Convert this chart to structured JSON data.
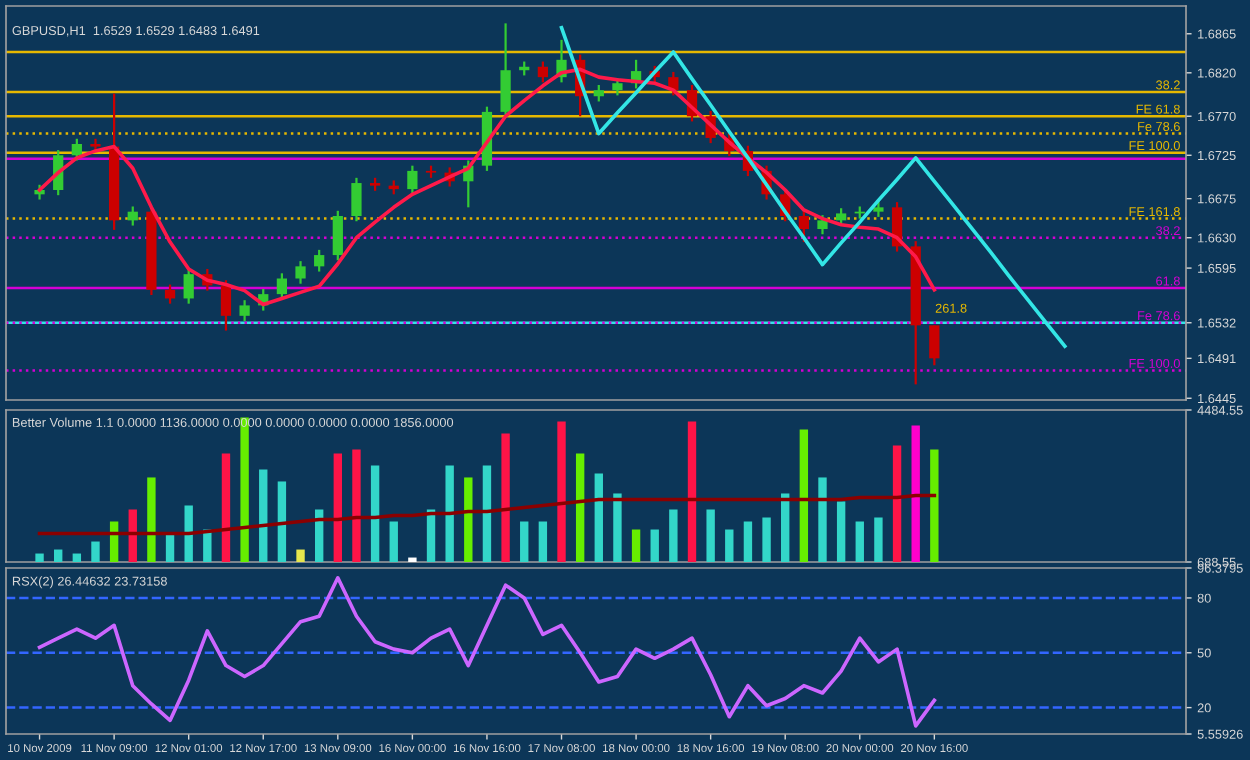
{
  "chart_data": [
    {
      "type": "candlestick",
      "annotations": [
        "GBPUSD,H1  1.6529 1.6529 1.6483 1.6491",
        "261.8",
        {
          "text": "38.2",
          "y": 1.6798
        },
        {
          "text": "38.2",
          "y": 1.663
        },
        {
          "text": "61.8",
          "y": 1.6572
        }
      ],
      "categories": [
        null,
        null,
        null,
        null,
        null,
        null,
        null,
        null,
        null,
        null,
        null,
        null,
        null,
        null,
        null,
        null,
        null,
        null,
        null,
        null,
        null,
        null,
        null,
        null,
        null,
        null,
        null,
        null,
        null,
        null,
        null,
        null,
        null,
        null,
        null,
        null,
        null,
        null,
        null,
        null,
        null,
        null,
        null,
        null,
        null,
        null,
        null,
        null,
        null,
        null,
        null,
        null,
        null,
        null,
        null,
        null,
        null,
        null,
        null,
        null,
        null,
        null
      ],
      "ohlc": [
        [
          1.668,
          1.6691,
          1.6674,
          1.6685
        ],
        [
          1.6685,
          1.6731,
          1.6679,
          1.6725
        ],
        [
          1.6725,
          1.6744,
          1.6719,
          1.6738
        ],
        [
          1.6738,
          1.6744,
          1.6729,
          1.6735
        ],
        [
          1.6735,
          1.6796,
          1.6639,
          1.665
        ],
        [
          1.665,
          1.6666,
          1.6644,
          1.666
        ],
        [
          1.666,
          1.6666,
          1.6564,
          1.657
        ],
        [
          1.657,
          1.6576,
          1.6554,
          1.656
        ],
        [
          1.656,
          1.6594,
          1.6554,
          1.6588
        ],
        [
          1.6588,
          1.6594,
          1.6569,
          1.6575
        ],
        [
          1.6575,
          1.6581,
          1.6523,
          1.654
        ],
        [
          1.654,
          1.6558,
          1.6534,
          1.6552
        ],
        [
          1.6552,
          1.6571,
          1.6546,
          1.6565
        ],
        [
          1.6565,
          1.6589,
          1.6559,
          1.6583
        ],
        [
          1.6583,
          1.6603,
          1.6577,
          1.6597
        ],
        [
          1.6597,
          1.6616,
          1.6591,
          1.661
        ],
        [
          1.661,
          1.6661,
          1.6604,
          1.6655
        ],
        [
          1.6655,
          1.6699,
          1.6649,
          1.6693
        ],
        [
          1.6693,
          1.6699,
          1.6684,
          1.669
        ],
        [
          1.669,
          1.6696,
          1.668,
          1.6686
        ],
        [
          1.6686,
          1.6713,
          1.668,
          1.6707
        ],
        [
          1.6707,
          1.6713,
          1.6699,
          1.6705
        ],
        [
          1.6705,
          1.6711,
          1.6689,
          1.6695
        ],
        [
          1.6695,
          1.6719,
          1.6665,
          1.6713
        ],
        [
          1.6713,
          1.6781,
          1.6707,
          1.6775
        ],
        [
          1.6775,
          1.6877,
          1.6769,
          1.6823
        ],
        [
          1.6823,
          1.6833,
          1.6817,
          1.6827
        ],
        [
          1.6827,
          1.6833,
          1.6809,
          1.6815
        ],
        [
          1.6815,
          1.6858,
          1.6809,
          1.6835
        ],
        [
          1.6835,
          1.6841,
          1.677,
          1.6793
        ],
        [
          1.6793,
          1.6806,
          1.6787,
          1.68
        ],
        [
          1.68,
          1.6814,
          1.6794,
          1.6808
        ],
        [
          1.6808,
          1.6835,
          1.6802,
          1.6822
        ],
        [
          1.6822,
          1.6828,
          1.6809,
          1.6815
        ],
        [
          1.6815,
          1.6821,
          1.6794,
          1.68
        ],
        [
          1.68,
          1.6806,
          1.6764,
          1.677
        ],
        [
          1.677,
          1.6776,
          1.6739,
          1.6745
        ],
        [
          1.6745,
          1.6751,
          1.6724,
          1.673
        ],
        [
          1.673,
          1.6736,
          1.6701,
          1.6707
        ],
        [
          1.6707,
          1.6713,
          1.6674,
          1.668
        ],
        [
          1.668,
          1.6686,
          1.6649,
          1.6655
        ],
        [
          1.6655,
          1.6661,
          1.6625,
          1.664
        ],
        [
          1.664,
          1.6656,
          1.6634,
          1.665
        ],
        [
          1.665,
          1.6664,
          1.6644,
          1.6658
        ],
        [
          1.6658,
          1.6666,
          1.6652,
          1.666
        ],
        [
          1.666,
          1.6673,
          1.6654,
          1.6665
        ],
        [
          1.6665,
          1.6671,
          1.6614,
          1.662
        ],
        [
          1.662,
          1.6626,
          1.6461,
          1.6529
        ],
        [
          1.6529,
          1.6529,
          1.6483,
          1.6491
        ],
        null,
        null,
        null,
        null,
        null,
        null,
        null,
        null,
        null,
        null,
        null,
        null,
        null
      ],
      "colors": [
        "#33cc33",
        "#33cc33",
        "#33cc33",
        "#cc0000",
        "#cc0000",
        "#33cc33",
        "#cc0000",
        "#cc0000",
        "#33cc33",
        "#cc0000",
        "#cc0000",
        "#33cc33",
        "#33cc33",
        "#33cc33",
        "#33cc33",
        "#33cc33",
        "#33cc33",
        "#33cc33",
        "#cc0000",
        "#cc0000",
        "#33cc33",
        "#cc0000",
        "#cc0000",
        "#33cc33",
        "#33cc33",
        "#33cc33",
        "#33cc33",
        "#cc0000",
        "#33cc33",
        "#cc0000",
        "#33cc33",
        "#33cc33",
        "#33cc33",
        "#cc0000",
        "#cc0000",
        "#cc0000",
        "#cc0000",
        "#cc0000",
        "#cc0000",
        "#cc0000",
        "#cc0000",
        "#cc0000",
        "#33cc33",
        "#33cc33",
        "#33cc33",
        "#33cc33",
        "#cc0000",
        "#cc0000",
        "#cc0000",
        null,
        null,
        null,
        null,
        null,
        null,
        null,
        null,
        null,
        null,
        null,
        null,
        null
      ],
      "series": [
        {
          "type": "line",
          "color": "#ff1a4a",
          "values": [
            1.6685,
            1.6705,
            1.6722,
            1.673,
            1.6735,
            1.671,
            1.6665,
            1.6625,
            1.6594,
            1.6581,
            1.6576,
            1.6569,
            1.6553,
            1.656,
            1.6567,
            1.6574,
            1.66,
            1.663,
            1.6648,
            1.6665,
            1.668,
            1.669,
            1.67,
            1.671,
            1.674,
            1.677,
            1.6788,
            1.6805,
            1.682,
            1.6824,
            1.6815,
            1.6812,
            1.681,
            1.6808,
            1.68,
            1.678,
            1.676,
            1.674,
            1.6722,
            1.6705,
            1.6685,
            1.6662,
            1.6652,
            1.6645,
            1.6642,
            1.664,
            1.663,
            1.6608,
            1.657,
            null,
            null,
            null,
            null,
            null,
            null,
            null,
            null,
            null,
            null,
            null,
            null,
            null
          ]
        },
        {
          "type": "line",
          "color": "#33e6e6",
          "values": [
            null,
            null,
            null,
            null,
            null,
            null,
            null,
            null,
            null,
            null,
            null,
            null,
            null,
            null,
            null,
            null,
            null,
            null,
            null,
            null,
            null,
            null,
            null,
            null,
            null,
            null,
            null,
            null,
            1.6872,
            1.6811,
            1.675,
            1.6774,
            1.6797,
            1.6821,
            1.6844,
            1.6813,
            1.6783,
            1.6752,
            1.6722,
            1.6691,
            1.666,
            1.663,
            1.6599,
            1.6624,
            1.6648,
            1.6673,
            1.6697,
            1.6722,
            1.6695,
            1.6668,
            1.6641,
            1.6614,
            1.6586,
            1.6559,
            1.6532,
            1.6505,
            null,
            null,
            null,
            null,
            null,
            null
          ]
        }
      ],
      "ref_lines": [
        {
          "axis": "y",
          "value": 1.6532,
          "color": "#33e6e6"
        },
        {
          "axis": "y",
          "value": 1.6844,
          "color": "#e6b800"
        },
        {
          "axis": "y",
          "value": 1.6798,
          "color": "#e6b800"
        },
        {
          "axis": "y",
          "value": 1.677,
          "label": "FE 61.8",
          "color": "#e6b800"
        },
        {
          "axis": "y",
          "value": 1.675,
          "label": "Fe 78.6",
          "color": "#e6b800",
          "line_style": "dotted"
        },
        {
          "axis": "y",
          "value": 1.6728,
          "label": "FE 100.0",
          "color": "#e6b800"
        },
        {
          "axis": "y",
          "value": 1.6652,
          "label": "FE 161.8",
          "color": "#e6b800",
          "line_style": "dotted"
        },
        {
          "axis": "y",
          "value": 1.6721,
          "color": "#d400d4"
        },
        {
          "axis": "y",
          "value": 1.663,
          "color": "#d400d4",
          "line_style": "dotted"
        },
        {
          "axis": "y",
          "value": 1.6572,
          "color": "#d400d4"
        },
        {
          "axis": "y",
          "value": 1.6532,
          "label": "Fe 78.6",
          "color": "#d400d4",
          "line_style": "dotted"
        },
        {
          "axis": "y",
          "value": 1.6477,
          "label": "FE 100.0",
          "color": "#d400d4",
          "line_style": "dotted"
        }
      ],
      "ylim": [
        1.6443,
        1.6897
      ],
      "yticks": [
        1.6865,
        {
          "value": 1.682,
          "label": "1.6820"
        },
        {
          "value": 1.677,
          "label": "1.6770"
        },
        1.6725,
        1.6675,
        {
          "value": 1.663,
          "label": "1.6630"
        },
        1.6595,
        {
          "value": 1.6532,
          "label": "1.6532"
        },
        1.6491,
        1.6445
      ],
      "tick_labels": "y"
    },
    {
      "type": "bar",
      "annotations": [
        "Better Volume 1.1 0.0000 1136.0000 0.0000 0.0000 0.0000 0.0000 1856.0000"
      ],
      "categories": [
        null,
        null,
        null,
        null,
        null,
        null,
        null,
        null,
        null,
        null,
        null,
        null,
        null,
        null,
        null,
        null,
        null,
        null,
        null,
        null,
        null,
        null,
        null,
        null,
        null,
        null,
        null,
        null,
        null,
        null,
        null,
        null,
        null,
        null,
        null,
        null,
        null,
        null,
        null,
        null,
        null,
        null,
        null,
        null,
        null,
        null,
        null,
        null,
        null,
        null,
        null,
        null,
        null,
        null,
        null,
        null,
        null,
        null,
        null,
        null,
        null,
        null
      ],
      "series": [
        {
          "type": "bar",
          "values": [
            900,
            1000,
            900,
            1200,
            1700,
            2000,
            2800,
            1400,
            2100,
            1500,
            3400,
            4300,
            3000,
            2700,
            1000,
            2000,
            3400,
            3500,
            3100,
            1700,
            800,
            2000,
            3100,
            2800,
            3100,
            3900,
            1700,
            1700,
            4200,
            3400,
            2900,
            2400,
            1500,
            1500,
            2000,
            4200,
            2000,
            1500,
            1700,
            1800,
            2400,
            4000,
            2800,
            2200,
            1700,
            1800,
            3600,
            4100,
            3500,
            null,
            null,
            null,
            null,
            null,
            null,
            null,
            null,
            null,
            null,
            null,
            null,
            null
          ],
          "colors": [
            "#33d6c9",
            "#33d6c9",
            "#33d6c9",
            "#33d6c9",
            "#66ee00",
            "#ff1447",
            "#66ee00",
            "#33d6c9",
            "#33d6c9",
            "#33d6c9",
            "#ff1447",
            "#66ee00",
            "#33d6c9",
            "#33d6c9",
            "#e6e64d",
            "#33d6c9",
            "#ff1447",
            "#ff1447",
            "#33d6c9",
            "#33d6c9",
            "#ffffff",
            "#33d6c9",
            "#33d6c9",
            "#66ee00",
            "#33d6c9",
            "#ff1447",
            "#33d6c9",
            "#33d6c9",
            "#ff1447",
            "#66ee00",
            "#33d6c9",
            "#33d6c9",
            "#66ee00",
            "#33d6c9",
            "#33d6c9",
            "#ff1447",
            "#33d6c9",
            "#33d6c9",
            "#33d6c9",
            "#33d6c9",
            "#33d6c9",
            "#66ee00",
            "#33d6c9",
            "#33d6c9",
            "#33d6c9",
            "#33d6c9",
            "#ff1447",
            "#ff00cc",
            "#66ee00",
            null,
            null,
            null,
            null,
            null,
            null,
            null,
            null,
            null,
            null,
            null,
            null,
            null
          ]
        },
        {
          "type": "line",
          "color": "#8b0000",
          "values": [
            1400,
            1400,
            1400,
            1400,
            1400,
            1400,
            1400,
            1400,
            1400,
            1450,
            1500,
            1550,
            1600,
            1650,
            1700,
            1750,
            1750,
            1800,
            1800,
            1850,
            1850,
            1900,
            1900,
            1950,
            1950,
            2000,
            2050,
            2100,
            2150,
            2200,
            2250,
            2250,
            2250,
            2250,
            2250,
            2250,
            2250,
            2250,
            2250,
            2250,
            2250,
            2250,
            2250,
            2250,
            2300,
            2300,
            2300,
            2350,
            2350,
            null,
            null,
            null,
            null,
            null,
            null,
            null,
            null,
            null,
            null,
            null,
            null,
            null
          ]
        }
      ],
      "ylim": [
        688.55,
        4484.55
      ],
      "yticks": [
        688.55,
        4484.55
      ],
      "tick_labels": "y"
    },
    {
      "type": "line",
      "annotations": [
        "RSX(2) 26.44632 23.73158"
      ],
      "categories": [
        "10 Nov 2009",
        null,
        null,
        null,
        "11 Nov 09:00",
        null,
        null,
        null,
        "12 Nov 01:00",
        null,
        null,
        null,
        "12 Nov 17:00",
        null,
        null,
        null,
        "13 Nov 09:00",
        null,
        null,
        null,
        "16 Nov 00:00",
        null,
        null,
        null,
        "16 Nov 16:00",
        null,
        null,
        null,
        "17 Nov 08:00",
        null,
        null,
        null,
        "18 Nov 00:00",
        null,
        null,
        null,
        "18 Nov 16:00",
        null,
        null,
        null,
        "19 Nov 08:00",
        null,
        null,
        null,
        "20 Nov 00:00",
        null,
        null,
        null,
        "20 Nov 16:00",
        null,
        null,
        null,
        null,
        null,
        null,
        null,
        null,
        null,
        null,
        null,
        null,
        null
      ],
      "series": [
        {
          "type": "line",
          "color": "#cc66ff",
          "values": [
            53,
            58,
            63,
            58,
            65,
            32,
            22,
            13,
            35,
            62,
            43,
            37,
            43,
            55,
            67,
            70,
            91,
            70,
            56,
            52,
            50,
            58,
            63,
            43,
            65,
            87,
            80,
            60,
            65,
            50,
            34,
            37,
            52,
            47,
            52,
            58,
            38,
            15,
            32,
            21,
            25,
            32,
            28,
            40,
            58,
            45,
            52,
            10,
            24,
            null,
            null,
            null,
            null,
            null,
            null,
            null,
            null,
            null,
            null,
            null,
            null,
            null
          ]
        }
      ],
      "ref_lines": [
        {
          "axis": "y",
          "value": 80,
          "color": "#3366ff",
          "line_style": "dashed"
        },
        {
          "axis": "y",
          "value": 50,
          "color": "#3366ff",
          "line_style": "dashed"
        },
        {
          "axis": "y",
          "value": 20,
          "color": "#3366ff",
          "line_style": "dashed"
        }
      ],
      "ylim": [
        5.55926,
        96.3795
      ],
      "yticks": [
        96.3795,
        80,
        50,
        20,
        5.55926
      ]
    }
  ]
}
